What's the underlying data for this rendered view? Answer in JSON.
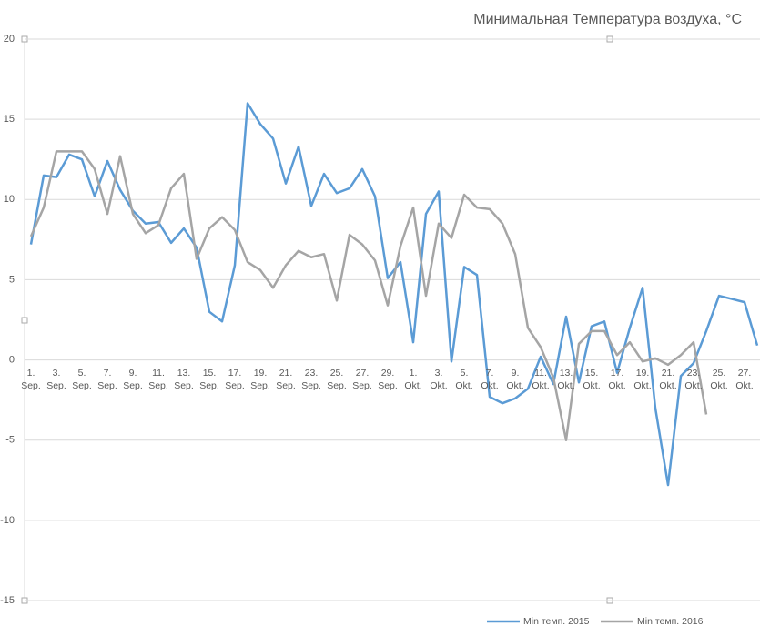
{
  "chart_data": {
    "type": "line",
    "title": "Минимальная Температура воздуха, °C",
    "categories": [
      "1. Sep.",
      null,
      "3. Sep.",
      null,
      "5. Sep.",
      null,
      "7. Sep.",
      null,
      "9. Sep.",
      null,
      "11. Sep.",
      null,
      "13. Sep.",
      null,
      "15. Sep.",
      null,
      "17. Sep.",
      null,
      "19. Sep.",
      null,
      "21. Sep.",
      null,
      "23. Sep.",
      null,
      "25. Sep.",
      null,
      "27. Sep.",
      null,
      "29. Sep.",
      null,
      "1. Okt.",
      null,
      "3. Okt.",
      null,
      "5. Okt.",
      null,
      "7. Okt.",
      null,
      "9. Okt.",
      null,
      "11. Okt.",
      null,
      "13. Okt.",
      null,
      "15. Okt.",
      null,
      "17. Okt.",
      null,
      "19. Okt.",
      null,
      "21. Okt.",
      null,
      "23. Okt.",
      null,
      "25. Okt.",
      null,
      "27. Okt.",
      null
    ],
    "series": [
      {
        "name": "Min темп. 2015",
        "color": "#5b9bd5",
        "values": [
          7.2,
          11.5,
          11.4,
          12.8,
          12.5,
          10.2,
          12.4,
          10.6,
          9.3,
          8.5,
          8.6,
          7.3,
          8.2,
          7.0,
          3.0,
          2.4,
          5.9,
          16.0,
          14.7,
          13.8,
          11.0,
          13.3,
          9.6,
          11.6,
          10.4,
          10.7,
          11.9,
          10.2,
          5.1,
          6.1,
          1.1,
          9.1,
          10.5,
          -0.1,
          5.8,
          5.3,
          -2.3,
          -2.7,
          -2.4,
          -1.8,
          0.2,
          -1.5,
          2.7,
          -1.4,
          2.1,
          2.4,
          -0.8,
          2.0,
          4.5,
          -3.0,
          -7.8,
          -1.0,
          -0.2,
          1.8,
          4.0,
          3.8,
          3.6,
          0.9
        ]
      },
      {
        "name": "Min темп. 2016",
        "color": "#a5a5a5",
        "values": [
          7.7,
          9.5,
          13.0,
          13.0,
          13.0,
          11.9,
          9.1,
          12.7,
          9.1,
          7.9,
          8.4,
          10.7,
          11.6,
          6.3,
          8.2,
          8.9,
          8.1,
          6.1,
          5.6,
          4.5,
          5.9,
          6.8,
          6.4,
          6.6,
          3.7,
          7.8,
          7.2,
          6.2,
          3.4,
          7.1,
          9.5,
          4.0,
          8.5,
          7.6,
          10.3,
          9.5,
          9.4,
          8.5,
          6.6,
          2.0,
          0.8,
          -1.1,
          -5.0,
          1.0,
          1.8,
          1.8,
          0.3,
          1.1,
          -0.1,
          0.1,
          -0.3,
          0.3,
          1.1,
          -3.4,
          null,
          null,
          null,
          null
        ]
      }
    ],
    "ylim": [
      -15,
      20
    ],
    "yticks": [
      -15,
      -10,
      -5,
      0,
      5,
      10,
      15,
      20
    ],
    "grid": true
  }
}
